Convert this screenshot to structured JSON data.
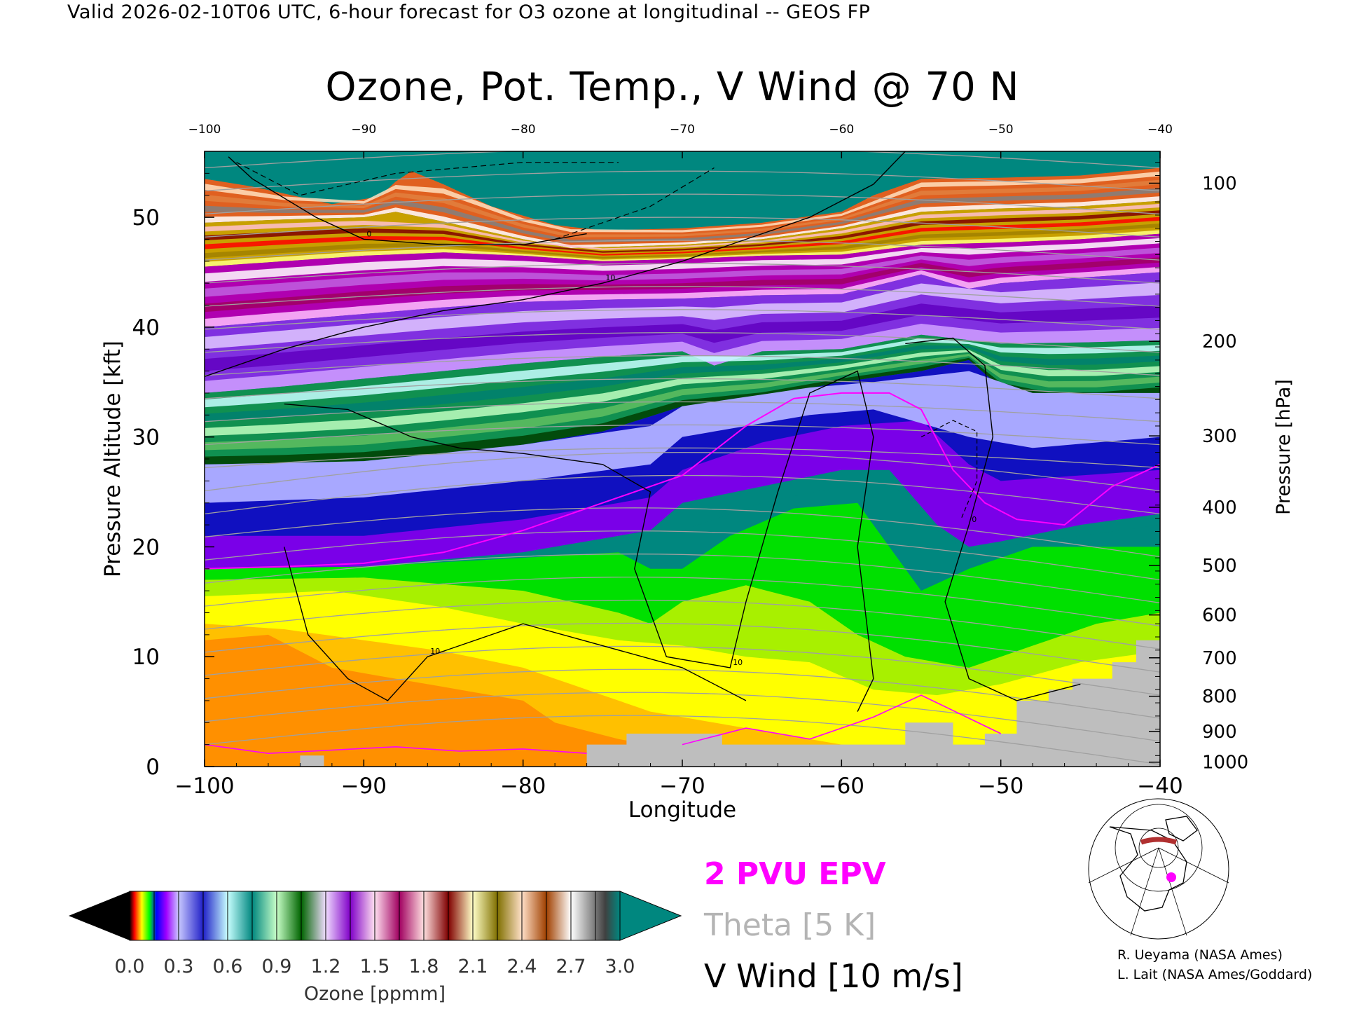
{
  "header": "Valid 2026-02-10T06 UTC, 6-hour forecast for O3 ozone at longitudinal -- GEOS FP",
  "title": "Ozone, Pot. Temp., V Wind @ 70 N",
  "chart_data": {
    "type": "heatmap",
    "title": "Ozone, Pot. Temp., V Wind @ 70 N",
    "xlabel": "Longitude",
    "ylabel": "Pressure Altitude [kft]",
    "y2label": "Pressure [hPa]",
    "xlim": [
      -100,
      -40
    ],
    "ylim": [
      0,
      56
    ],
    "x_ticks": [
      -100,
      -90,
      -80,
      -70,
      -60,
      -50,
      -40
    ],
    "y_ticks": [
      0,
      10,
      20,
      30,
      40,
      50
    ],
    "pressure_ticks": [
      {
        "hPa": 100,
        "kft": 53.1
      },
      {
        "hPa": 200,
        "kft": 38.7
      },
      {
        "hPa": 300,
        "kft": 30.1
      },
      {
        "hPa": 400,
        "kft": 23.6
      },
      {
        "hPa": 500,
        "kft": 18.3
      },
      {
        "hPa": 600,
        "kft": 13.8
      },
      {
        "hPa": 700,
        "kft": 9.9
      },
      {
        "hPa": 800,
        "kft": 6.4
      },
      {
        "hPa": 900,
        "kft": 3.2
      },
      {
        "hPa": 1000,
        "kft": 0.4
      }
    ],
    "ozone_boundaries": [
      {
        "ppmm": 0.6,
        "points": [
          [
            -100,
            27.5
          ],
          [
            -95,
            27.6
          ],
          [
            -90,
            27.8
          ],
          [
            -85,
            28.5
          ],
          [
            -80,
            29.3
          ],
          [
            -75,
            30.5
          ],
          [
            -70,
            32.8
          ],
          [
            -65,
            33.6
          ],
          [
            -60,
            35.0
          ],
          [
            -55,
            36.0
          ],
          [
            -52,
            37.0
          ],
          [
            -50,
            34.5
          ],
          [
            -47,
            33.5
          ],
          [
            -44,
            33.5
          ],
          [
            -40,
            34.0
          ]
        ]
      },
      {
        "ppmm": 0.9,
        "points": [
          [
            -100,
            34.0
          ],
          [
            -95,
            34.6
          ],
          [
            -90,
            35.3
          ],
          [
            -85,
            36.0
          ],
          [
            -80,
            36.7
          ],
          [
            -75,
            37.3
          ],
          [
            -70,
            37.8
          ],
          [
            -68,
            36.5
          ],
          [
            -65,
            37.8
          ],
          [
            -60,
            38.0
          ],
          [
            -55,
            39.3
          ],
          [
            -50,
            38.5
          ],
          [
            -45,
            38.6
          ],
          [
            -40,
            38.8
          ]
        ]
      },
      {
        "ppmm": 1.2,
        "points": [
          [
            -100,
            40.0
          ],
          [
            -95,
            40.6
          ],
          [
            -90,
            41.2
          ],
          [
            -85,
            41.8
          ],
          [
            -80,
            42.3
          ],
          [
            -75,
            42.5
          ],
          [
            -70,
            42.6
          ],
          [
            -65,
            42.9
          ],
          [
            -60,
            43.0
          ],
          [
            -55,
            44.8
          ],
          [
            -52,
            43.5
          ],
          [
            -50,
            44.0
          ],
          [
            -45,
            44.5
          ],
          [
            -40,
            45.0
          ]
        ]
      },
      {
        "ppmm": 1.5,
        "points": [
          [
            -100,
            45.5
          ],
          [
            -95,
            46.0
          ],
          [
            -90,
            46.5
          ],
          [
            -85,
            46.8
          ],
          [
            -80,
            46.5
          ],
          [
            -75,
            46.0
          ],
          [
            -70,
            46.2
          ],
          [
            -65,
            46.5
          ],
          [
            -60,
            46.6
          ],
          [
            -55,
            47.5
          ],
          [
            -50,
            47.7
          ],
          [
            -45,
            48.0
          ],
          [
            -40,
            48.5
          ]
        ]
      },
      {
        "ppmm": 2.1,
        "points": [
          [
            -100,
            49.5
          ],
          [
            -95,
            49.8
          ],
          [
            -90,
            50.0
          ],
          [
            -88,
            50.5
          ],
          [
            -85,
            49.6
          ],
          [
            -80,
            48.0
          ],
          [
            -77,
            47.2
          ],
          [
            -70,
            47.5
          ],
          [
            -65,
            48.0
          ],
          [
            -60,
            49.0
          ],
          [
            -55,
            50.5
          ],
          [
            -50,
            50.8
          ],
          [
            -45,
            51.0
          ],
          [
            -40,
            51.5
          ]
        ]
      },
      {
        "ppmm": 3.0,
        "points": [
          [
            -100,
            53.5
          ],
          [
            -97,
            52.8
          ],
          [
            -92,
            51.2
          ],
          [
            -88.5,
            52.0
          ],
          [
            -87.5,
            54.5
          ],
          [
            -85,
            53.0
          ],
          [
            -82,
            51.0
          ],
          [
            -78,
            49.3
          ],
          [
            -75,
            48.8
          ],
          [
            -70,
            49.0
          ],
          [
            -65,
            49.5
          ],
          [
            -60,
            50.5
          ],
          [
            -58,
            52.0
          ],
          [
            -55,
            53.5
          ],
          [
            -50,
            53.6
          ],
          [
            -45,
            53.8
          ],
          [
            -40,
            54.5
          ]
        ]
      }
    ],
    "epv_2pvu": [
      [
        -100,
        18.0
      ],
      [
        -95,
        18.2
      ],
      [
        -90,
        18.5
      ],
      [
        -85,
        19.5
      ],
      [
        -80,
        21.5
      ],
      [
        -75,
        24.0
      ],
      [
        -70,
        26.5
      ],
      [
        -66,
        31.0
      ],
      [
        -63,
        33.5
      ],
      [
        -60,
        34.0
      ],
      [
        -57,
        34.0
      ],
      [
        -55,
        32.5
      ],
      [
        -53,
        27.0
      ],
      [
        -51,
        24.0
      ],
      [
        -49,
        22.5
      ],
      [
        -46,
        22.0
      ],
      [
        -43,
        25.5
      ],
      [
        -40,
        27.5
      ]
    ],
    "v_wind_contours": [
      {
        "label": "0",
        "points": [
          [
            -98.5,
            55.5
          ],
          [
            -97,
            53.5
          ],
          [
            -93,
            50.0
          ],
          [
            -90,
            48.0
          ],
          [
            -85,
            47.5
          ],
          [
            -80,
            47.5
          ],
          [
            -76,
            48.5
          ]
        ]
      },
      {
        "label": "10",
        "points": [
          [
            -100,
            35.5
          ],
          [
            -95,
            38.0
          ],
          [
            -90,
            40.0
          ],
          [
            -85,
            41.5
          ],
          [
            -80,
            42.5
          ],
          [
            -75,
            44.0
          ],
          [
            -70,
            46.0
          ],
          [
            -65,
            48.5
          ],
          [
            -62,
            50.0
          ],
          [
            -58,
            53.0
          ],
          [
            -56,
            56.0
          ]
        ]
      },
      {
        "label": "10",
        "points": [
          [
            -95,
            33.0
          ],
          [
            -91,
            32.5
          ],
          [
            -87,
            30.0
          ],
          [
            -84,
            29.0
          ],
          [
            -80,
            28.5
          ],
          [
            -75,
            27.5
          ],
          [
            -72,
            25.0
          ],
          [
            -73,
            18.0
          ],
          [
            -71,
            10.0
          ],
          [
            -67,
            9.0
          ],
          [
            -66,
            15.0
          ],
          [
            -64,
            25.0
          ],
          [
            -62,
            34.0
          ],
          [
            -59,
            36.0
          ],
          [
            -58,
            30.0
          ],
          [
            -59,
            20.0
          ],
          [
            -58,
            8.0
          ],
          [
            -59,
            5.0
          ]
        ]
      },
      {
        "label": "0",
        "points": [
          [
            -56,
            38.5
          ],
          [
            -53,
            39.0
          ],
          [
            -51,
            36.5
          ],
          [
            -50.5,
            30.0
          ],
          [
            -52,
            22.0
          ],
          [
            -53.5,
            15.0
          ],
          [
            -52,
            8.0
          ],
          [
            -49,
            6.0
          ],
          [
            -45,
            7.5
          ]
        ]
      },
      {
        "label": "10",
        "points": [
          [
            -95,
            20.0
          ],
          [
            -93.5,
            12.0
          ],
          [
            -91,
            8.0
          ],
          [
            -88.5,
            6.0
          ],
          [
            -86,
            10.0
          ],
          [
            -80,
            13.0
          ],
          [
            -70,
            9.0
          ],
          [
            -66,
            6.0
          ]
        ]
      }
    ]
  },
  "colorbar": {
    "label": "Ozone [ppmm]",
    "ticks": [
      "0.0",
      "0.3",
      "0.6",
      "0.9",
      "1.2",
      "1.5",
      "1.8",
      "2.1",
      "2.4",
      "2.7",
      "3.0"
    ],
    "range": [
      0,
      3
    ]
  },
  "legend": {
    "epv": "2 PVU EPV",
    "theta": "Theta [5 K]",
    "vwind": "V Wind [10 m/s]",
    "epv_color": "#ff00ff",
    "theta_color": "#b4b4b4",
    "vwind_color": "#000000"
  },
  "credits": {
    "line1": "R. Ueyama (NASA Ames)",
    "line2": "L. Lait (NASA Ames/Goddard)"
  },
  "colors": {
    "ocean_teal": "#00877f",
    "ground": "#bebebe",
    "epv": "#ff00ff"
  }
}
